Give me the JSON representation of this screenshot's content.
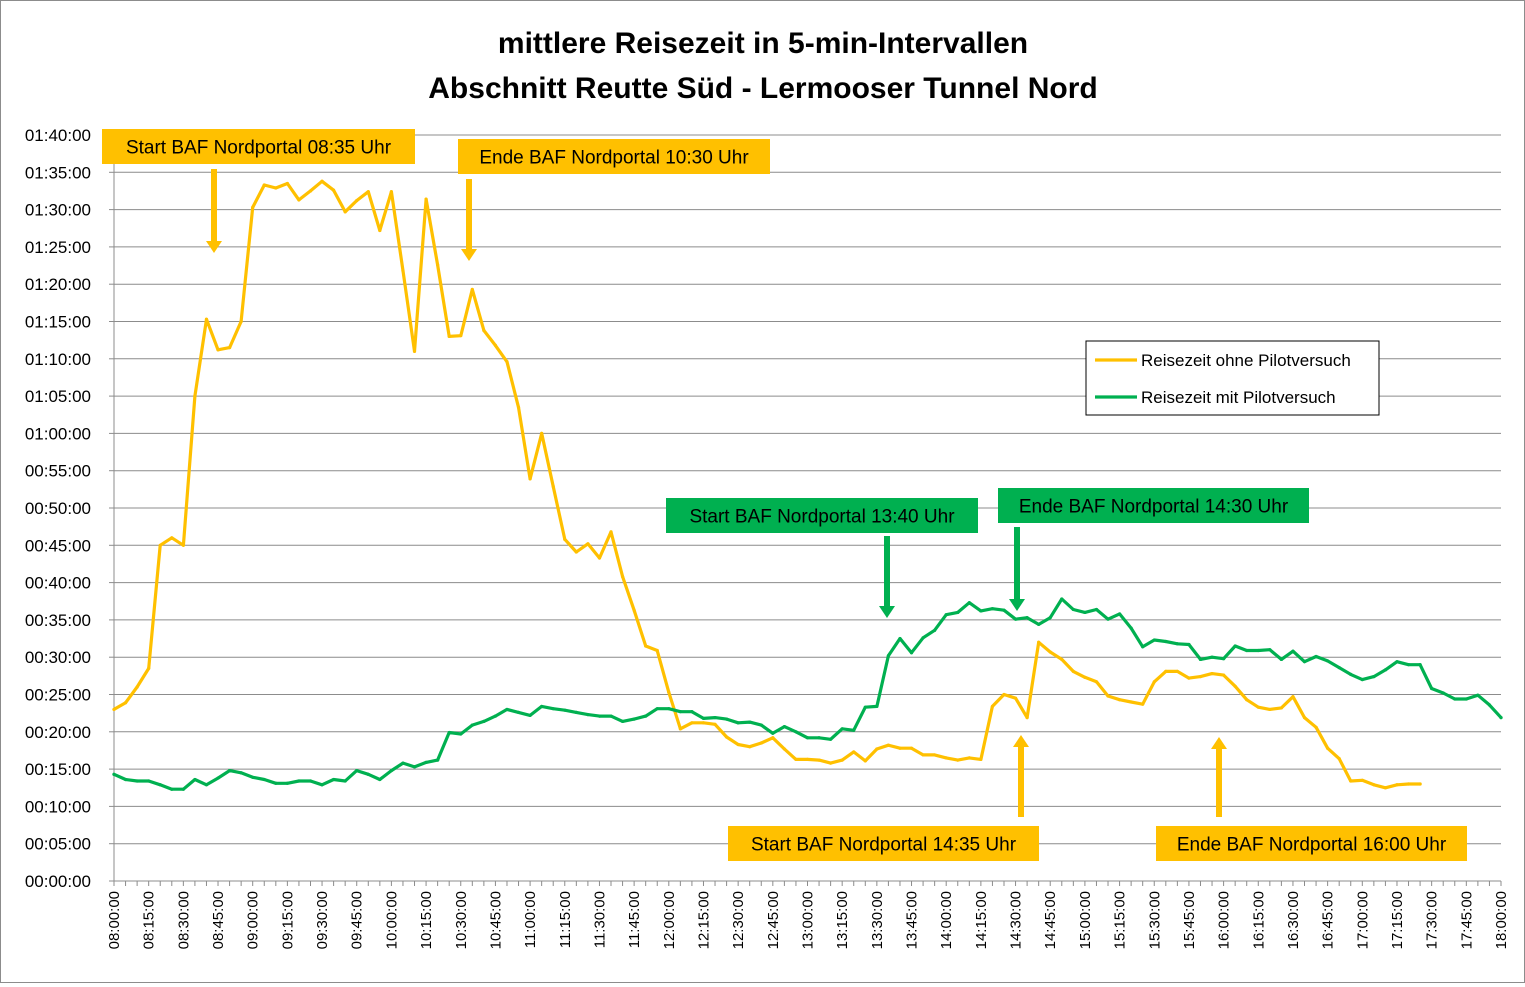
{
  "chart_data": {
    "type": "line",
    "title": [
      "mittlere Reisezeit in 5-min-Intervallen",
      "Abschnitt Reutte Süd - Lermooser Tunnel Nord"
    ],
    "xlabel": "",
    "ylabel": "",
    "x_ticks": [
      "08:00:00",
      "08:15:00",
      "08:30:00",
      "08:45:00",
      "09:00:00",
      "09:15:00",
      "09:30:00",
      "09:45:00",
      "10:00:00",
      "10:15:00",
      "10:30:00",
      "10:45:00",
      "11:00:00",
      "11:15:00",
      "11:30:00",
      "11:45:00",
      "12:00:00",
      "12:15:00",
      "12:30:00",
      "12:45:00",
      "13:00:00",
      "13:15:00",
      "13:30:00",
      "13:45:00",
      "14:00:00",
      "14:15:00",
      "14:30:00",
      "14:45:00",
      "15:00:00",
      "15:15:00",
      "15:30:00",
      "15:45:00",
      "16:00:00",
      "16:15:00",
      "16:30:00",
      "16:45:00",
      "17:00:00",
      "17:15:00",
      "17:30:00",
      "17:45:00",
      "18:00:00"
    ],
    "y_ticks": [
      "00:00:00",
      "00:05:00",
      "00:10:00",
      "00:15:00",
      "00:20:00",
      "00:25:00",
      "00:30:00",
      "00:35:00",
      "00:40:00",
      "00:45:00",
      "00:50:00",
      "00:55:00",
      "01:00:00",
      "01:05:00",
      "01:10:00",
      "01:15:00",
      "01:20:00",
      "01:25:00",
      "01:30:00",
      "01:35:00",
      "01:40:00"
    ],
    "xlim_minutes": [
      480,
      1080
    ],
    "ylim_minutes": [
      0,
      100
    ],
    "x_interval_minutes": 5,
    "x_start": "08:00:00",
    "grid": "horizontal",
    "legend_position": "right",
    "series": [
      {
        "name": "Reisezeit ohne Pilotversuch",
        "color": "#FFC000",
        "values": [
          23,
          23.9,
          26,
          28.5,
          45,
          46,
          45,
          65,
          75.3,
          71.2,
          71.5,
          75,
          90.3,
          93.3,
          92.9,
          93.5,
          91.3,
          92.5,
          93.8,
          92.6,
          89.7,
          91.2,
          92.4,
          87.2,
          92.4,
          81.8,
          71,
          91.4,
          82.6,
          73,
          73.1,
          79.3,
          73.8,
          71.8,
          69.6,
          63.5,
          53.9,
          60,
          52.9,
          45.8,
          44.1,
          45.2,
          43.3,
          46.8,
          40.8,
          36.3,
          31.5,
          30.9,
          25.3,
          20.4,
          21.2,
          21.2,
          21,
          19.3,
          18.3,
          18,
          18.5,
          19.2,
          17.7,
          16.3,
          16.3,
          16.2,
          15.8,
          16.2,
          17.3,
          16.1,
          17.7,
          18.2,
          17.8,
          17.8,
          16.9,
          16.9,
          16.5,
          16.2,
          16.5,
          16.3,
          23.4,
          25,
          24.5,
          21.9,
          32,
          30.7,
          29.7,
          28.1,
          27.3,
          26.7,
          24.8,
          24.3,
          24,
          23.7,
          26.7,
          28.1,
          28.1,
          27.2,
          27.4,
          27.8,
          27.6,
          26.1,
          24.3,
          23.3,
          23,
          23.2,
          24.7,
          21.9,
          20.6,
          17.8,
          16.4,
          13.4,
          13.5,
          12.9,
          12.5,
          12.9,
          13,
          13
        ]
      },
      {
        "name": "Reisezeit mit Pilotversuch",
        "color": "#00B050",
        "values": [
          14.3,
          13.6,
          13.4,
          13.4,
          12.9,
          12.3,
          12.3,
          13.6,
          12.9,
          13.8,
          14.8,
          14.5,
          13.9,
          13.6,
          13.1,
          13.1,
          13.4,
          13.4,
          12.9,
          13.6,
          13.4,
          14.8,
          14.3,
          13.6,
          14.8,
          15.8,
          15.3,
          15.9,
          16.2,
          19.9,
          19.7,
          20.9,
          21.4,
          22.1,
          23,
          22.6,
          22.2,
          23.4,
          23.1,
          22.9,
          22.6,
          22.3,
          22.1,
          22.1,
          21.4,
          21.7,
          22.1,
          23.1,
          23.1,
          22.7,
          22.7,
          21.8,
          21.9,
          21.7,
          21.2,
          21.3,
          20.9,
          19.8,
          20.7,
          20,
          19.2,
          19.2,
          19,
          20.4,
          20.2,
          23.3,
          23.4,
          30.2,
          32.5,
          30.6,
          32.6,
          33.6,
          35.7,
          36,
          37.3,
          36.2,
          36.5,
          36.3,
          35.1,
          35.3,
          34.4,
          35.3,
          37.8,
          36.4,
          36,
          36.4,
          35.1,
          35.8,
          33.9,
          31.4,
          32.3,
          32.1,
          31.8,
          31.7,
          29.7,
          30,
          29.8,
          31.5,
          30.9,
          30.9,
          31,
          29.7,
          30.8,
          29.4,
          30.1,
          29.5,
          28.6,
          27.7,
          27,
          27.4,
          28.3,
          29.4,
          29,
          29,
          25.8,
          25.2,
          24.4,
          24.4,
          24.9,
          23.6,
          21.9
        ]
      }
    ],
    "annotations": [
      {
        "label": "Start BAF Nordportal 08:35 Uhr",
        "color": "#FFC000",
        "time": "08:35"
      },
      {
        "label": "Ende BAF Nordportal 10:30 Uhr",
        "color": "#FFC000",
        "time": "10:30"
      },
      {
        "label": "Start BAF Nordportal 13:40 Uhr",
        "color": "#00B050",
        "time": "13:40"
      },
      {
        "label": "Ende BAF Nordportal 14:30 Uhr",
        "color": "#00B050",
        "time": "14:30"
      },
      {
        "label": "Start BAF Nordportal 14:35 Uhr",
        "color": "#FFC000",
        "time": "14:35"
      },
      {
        "label": "Ende BAF Nordportal 16:00 Uhr",
        "color": "#FFC000",
        "time": "16:00"
      }
    ]
  }
}
